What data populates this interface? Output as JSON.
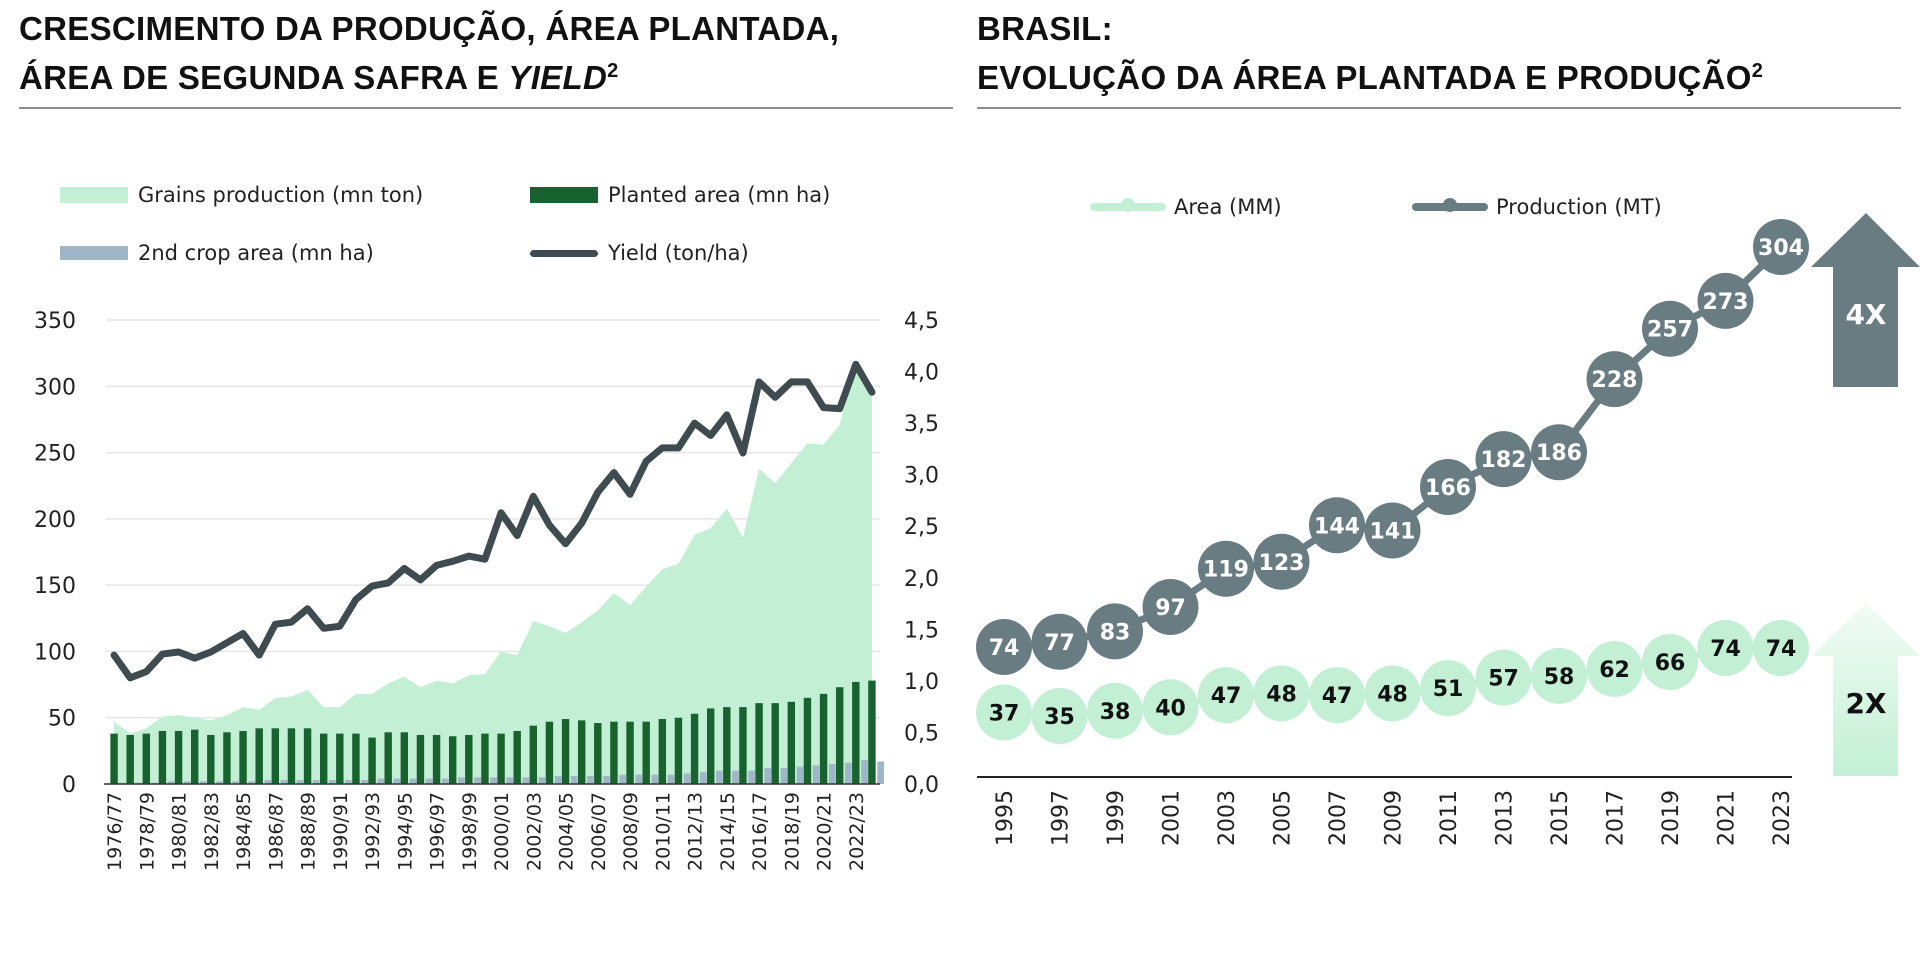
{
  "left_panel": {
    "title_line1": "CRESCIMENTO DA PRODUÇÃO, ÁREA PLANTADA,",
    "title_line2_prefix": "ÁREA DE SEGUNDA SAFRA E ",
    "title_line2_italic": "YIELD",
    "title_sup": "2"
  },
  "right_panel": {
    "title_line1": "BRASIL:",
    "title_line2": "EVOLUÇÃO DA ÁREA PLANTADA E PRODUÇÃO",
    "title_sup": "2"
  },
  "colors": {
    "grains": "#c3f0d5",
    "planted": "#17622f",
    "second_crop": "#9fb6c8",
    "yield": "#3f4c4f",
    "production": "#687c82",
    "area": "#c3f0d5",
    "axis": "#111111",
    "grid": "#e6e6e6"
  },
  "chart_data": [
    {
      "type": "area",
      "legend": [
        {
          "name": "Grains production (mn ton)",
          "kind": "area"
        },
        {
          "name": "Planted area (mn ha)",
          "kind": "bar"
        },
        {
          "name": "2nd crop area (mn ha)",
          "kind": "bar"
        },
        {
          "name": "Yield (ton/ha)",
          "kind": "line"
        }
      ],
      "legend_position": "top",
      "y_left": {
        "min": 0,
        "max": 350,
        "ticks": [
          "0",
          "50",
          "100",
          "150",
          "200",
          "250",
          "300",
          "350"
        ]
      },
      "y_right": {
        "min": 0,
        "max": 4.5,
        "ticks": [
          "0,0",
          "0,5",
          "1,0",
          "1,5",
          "2,0",
          "2,5",
          "3,0",
          "3,5",
          "4,0",
          "4,5"
        ]
      },
      "grid": true,
      "x": [
        "1976/77",
        "1977/78",
        "1978/79",
        "1979/80",
        "1980/81",
        "1981/82",
        "1982/83",
        "1983/84",
        "1984/85",
        "1985/86",
        "1986/87",
        "1987/88",
        "1988/89",
        "1989/90",
        "1990/91",
        "1991/92",
        "1992/93",
        "1993/94",
        "1994/95",
        "1995/96",
        "1996/97",
        "1997/98",
        "1998/99",
        "1999/00",
        "2000/01",
        "2001/02",
        "2002/03",
        "2003/04",
        "2004/05",
        "2005/06",
        "2006/07",
        "2007/08",
        "2008/09",
        "2009/10",
        "2010/11",
        "2011/12",
        "2012/13",
        "2013/14",
        "2014/15",
        "2015/16",
        "2016/17",
        "2017/18",
        "2018/19",
        "2019/20",
        "2020/21",
        "2021/22",
        "2022/23",
        "2023/24"
      ],
      "x_tick_labels": [
        "1976/77",
        "1978/79",
        "1980/81",
        "1982/83",
        "1984/85",
        "1986/87",
        "1988/89",
        "1990/91",
        "1992/93",
        "1994/95",
        "1996/97",
        "1998/99",
        "2000/01",
        "2002/03",
        "2004/05",
        "2006/07",
        "2008/09",
        "2010/11",
        "2012/13",
        "2014/15",
        "2016/17",
        "2018/19",
        "2020/21",
        "2022/23"
      ],
      "series": [
        {
          "name": "Grains production (mn ton)",
          "axis": "left",
          "values": [
            47,
            38,
            42,
            51,
            52,
            50,
            48,
            52,
            58,
            56,
            65,
            66,
            71,
            58,
            58,
            68,
            68,
            76,
            81,
            73,
            78,
            76,
            82,
            83,
            100,
            97,
            123,
            119,
            114,
            122,
            131,
            144,
            135,
            149,
            162,
            166,
            188,
            193,
            208,
            186,
            238,
            227,
            242,
            257,
            256,
            271,
            320,
            298
          ]
        },
        {
          "name": "Planted area (mn ha)",
          "axis": "left",
          "values": [
            38,
            37,
            38,
            40,
            40,
            41,
            37,
            39,
            40,
            42,
            42,
            42,
            42,
            38,
            38,
            38,
            35,
            39,
            39,
            37,
            37,
            36,
            37,
            38,
            38,
            40,
            44,
            47,
            49,
            48,
            46,
            47,
            47,
            47,
            49,
            50,
            53,
            57,
            58,
            58,
            61,
            61,
            62,
            65,
            68,
            73,
            77,
            78
          ]
        },
        {
          "name": "2nd crop area (mn ha)",
          "axis": "left",
          "values": [
            1,
            1,
            1,
            2,
            2,
            2,
            2,
            2,
            2,
            3,
            3,
            3,
            3,
            3,
            3,
            3,
            4,
            4,
            4,
            4,
            4,
            5,
            5,
            5,
            5,
            5,
            5,
            6,
            6,
            6,
            6,
            7,
            7,
            7,
            7,
            8,
            9,
            10,
            10,
            10,
            12,
            12,
            13,
            14,
            15,
            16,
            18,
            17
          ]
        },
        {
          "name": "Yield (ton/ha)",
          "axis": "right",
          "values": [
            1.25,
            1.03,
            1.09,
            1.26,
            1.28,
            1.22,
            1.28,
            1.37,
            1.46,
            1.25,
            1.55,
            1.57,
            1.7,
            1.51,
            1.53,
            1.79,
            1.92,
            1.95,
            2.09,
            1.98,
            2.12,
            2.16,
            2.21,
            2.18,
            2.63,
            2.41,
            2.79,
            2.51,
            2.33,
            2.53,
            2.83,
            3.02,
            2.81,
            3.13,
            3.26,
            3.26,
            3.5,
            3.38,
            3.58,
            3.21,
            3.9,
            3.75,
            3.9,
            3.9,
            3.65,
            3.64,
            4.07,
            3.8
          ]
        }
      ]
    },
    {
      "type": "line",
      "legend": [
        {
          "name": "Area (MM)"
        },
        {
          "name": "Production (MT)"
        }
      ],
      "legend_position": "top",
      "x": [
        "1995",
        "1997",
        "1999",
        "2001",
        "2003",
        "2005",
        "2007",
        "2009",
        "2011",
        "2013",
        "2015",
        "2017",
        "2019",
        "2021",
        "2023"
      ],
      "series": [
        {
          "name": "Area (MM)",
          "values": [
            37,
            35,
            38,
            40,
            47,
            48,
            47,
            48,
            51,
            57,
            58,
            62,
            66,
            74,
            74
          ]
        },
        {
          "name": "Production (MT)",
          "values": [
            74,
            77,
            83,
            97,
            119,
            123,
            144,
            141,
            166,
            182,
            186,
            228,
            257,
            273,
            304
          ]
        }
      ],
      "grid": false,
      "annotations": [
        {
          "text": "4X",
          "target": "Production (MT)"
        },
        {
          "text": "2X",
          "target": "Area (MM)"
        }
      ]
    }
  ]
}
